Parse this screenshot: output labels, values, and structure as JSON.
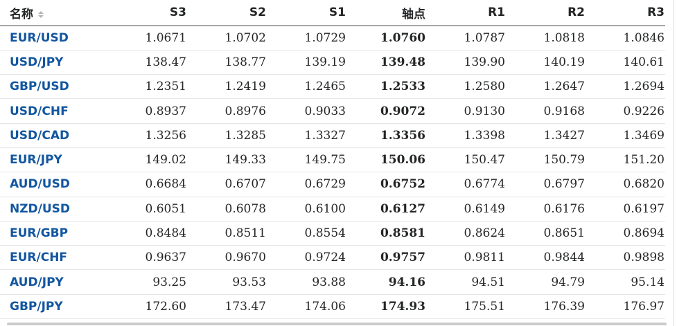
{
  "colors": {
    "link-blue": "#1256a0",
    "value-text": "#232526",
    "header-border": "#a8a8a8",
    "row-border": "#e6e6e6",
    "sort-icon": "#b5b5b5",
    "edge-line": "#d8d8d8",
    "scrollbar": "#cbcbcb"
  },
  "table": {
    "columns": [
      {
        "key": "name",
        "label": "名称"
      },
      {
        "key": "s3",
        "label": "S3"
      },
      {
        "key": "s2",
        "label": "S2"
      },
      {
        "key": "s1",
        "label": "S1"
      },
      {
        "key": "pivot",
        "label": "轴点"
      },
      {
        "key": "r1",
        "label": "R1"
      },
      {
        "key": "r2",
        "label": "R2"
      },
      {
        "key": "r3",
        "label": "R3"
      }
    ],
    "rows": [
      {
        "name": "EUR/USD",
        "s3": "1.0671",
        "s2": "1.0702",
        "s1": "1.0729",
        "pivot": "1.0760",
        "r1": "1.0787",
        "r2": "1.0818",
        "r3": "1.0846"
      },
      {
        "name": "USD/JPY",
        "s3": "138.47",
        "s2": "138.77",
        "s1": "139.19",
        "pivot": "139.48",
        "r1": "139.90",
        "r2": "140.19",
        "r3": "140.61"
      },
      {
        "name": "GBP/USD",
        "s3": "1.2351",
        "s2": "1.2419",
        "s1": "1.2465",
        "pivot": "1.2533",
        "r1": "1.2580",
        "r2": "1.2647",
        "r3": "1.2694"
      },
      {
        "name": "USD/CHF",
        "s3": "0.8937",
        "s2": "0.8976",
        "s1": "0.9033",
        "pivot": "0.9072",
        "r1": "0.9130",
        "r2": "0.9168",
        "r3": "0.9226"
      },
      {
        "name": "USD/CAD",
        "s3": "1.3256",
        "s2": "1.3285",
        "s1": "1.3327",
        "pivot": "1.3356",
        "r1": "1.3398",
        "r2": "1.3427",
        "r3": "1.3469"
      },
      {
        "name": "EUR/JPY",
        "s3": "149.02",
        "s2": "149.33",
        "s1": "149.75",
        "pivot": "150.06",
        "r1": "150.47",
        "r2": "150.79",
        "r3": "151.20"
      },
      {
        "name": "AUD/USD",
        "s3": "0.6684",
        "s2": "0.6707",
        "s1": "0.6729",
        "pivot": "0.6752",
        "r1": "0.6774",
        "r2": "0.6797",
        "r3": "0.6820"
      },
      {
        "name": "NZD/USD",
        "s3": "0.6051",
        "s2": "0.6078",
        "s1": "0.6100",
        "pivot": "0.6127",
        "r1": "0.6149",
        "r2": "0.6176",
        "r3": "0.6197"
      },
      {
        "name": "EUR/GBP",
        "s3": "0.8484",
        "s2": "0.8511",
        "s1": "0.8554",
        "pivot": "0.8581",
        "r1": "0.8624",
        "r2": "0.8651",
        "r3": "0.8694"
      },
      {
        "name": "EUR/CHF",
        "s3": "0.9637",
        "s2": "0.9670",
        "s1": "0.9724",
        "pivot": "0.9757",
        "r1": "0.9811",
        "r2": "0.9844",
        "r3": "0.9898"
      },
      {
        "name": "AUD/JPY",
        "s3": "93.25",
        "s2": "93.53",
        "s1": "93.88",
        "pivot": "94.16",
        "r1": "94.51",
        "r2": "94.79",
        "r3": "95.14"
      },
      {
        "name": "GBP/JPY",
        "s3": "172.60",
        "s2": "173.47",
        "s1": "174.06",
        "pivot": "174.93",
        "r1": "175.51",
        "r2": "176.39",
        "r3": "176.97"
      }
    ]
  }
}
